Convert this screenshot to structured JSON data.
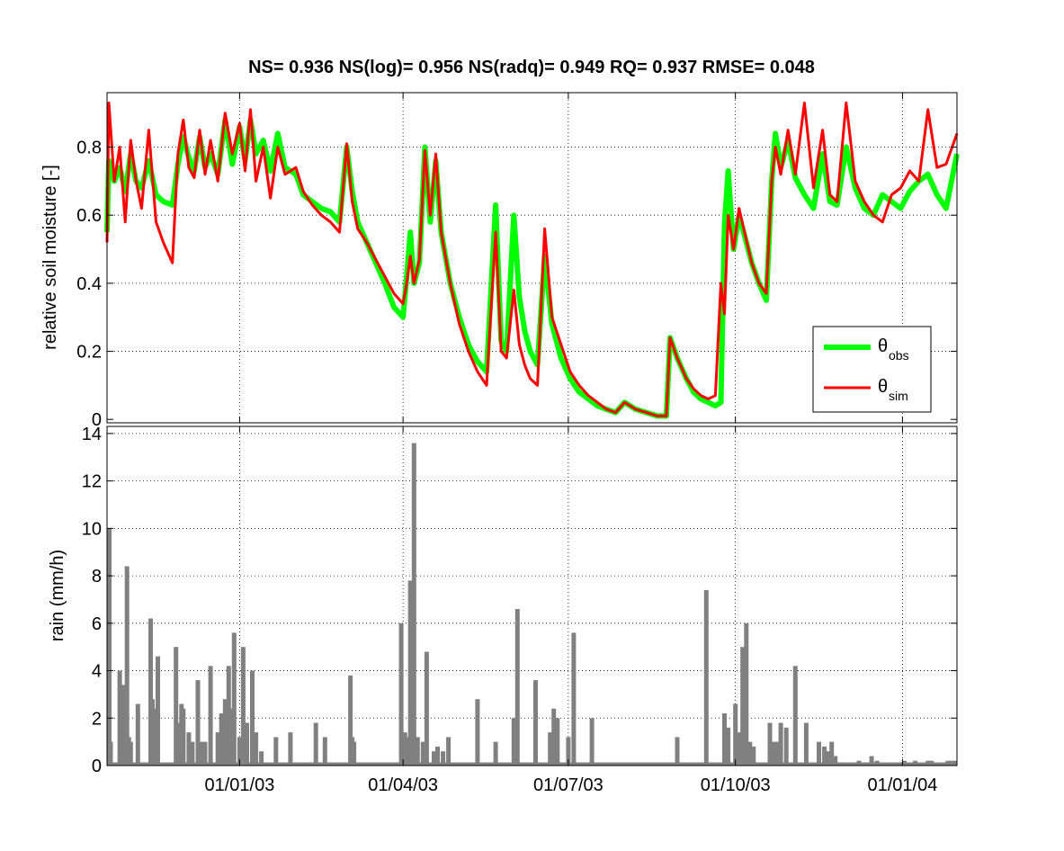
{
  "chart_data": [
    {
      "type": "line",
      "title": "NS= 0.936 NS(log)= 0.956 NS(radq)= 0.949 RQ= 0.937 RMSE= 0.048",
      "ylabel": "relative soil moisture [-]",
      "xlabel": "",
      "xlim": [
        "2002-10-20",
        "2004-01-31"
      ],
      "ylim": [
        -0.01,
        0.96
      ],
      "yticks": [
        0,
        0.2,
        0.4,
        0.6,
        0.8
      ],
      "ytick_labels": [
        "0",
        "0.2",
        "0.4",
        "0.6",
        "0.8"
      ],
      "grid": true,
      "legend": {
        "placement": "bottom-right",
        "entries": [
          {
            "symbol": "θ",
            "sub": "obs",
            "color": "#00ff00"
          },
          {
            "symbol": "θ",
            "sub": "sim",
            "color": "#ff0000"
          }
        ]
      },
      "series": [
        {
          "key": "obs",
          "color": "#00ff00",
          "x": [
            "2002-10-20",
            "2002-10-21",
            "2002-10-24",
            "2002-10-27",
            "2002-10-30",
            "2002-11-02",
            "2002-11-05",
            "2002-11-08",
            "2002-11-12",
            "2002-11-16",
            "2002-11-20",
            "2002-11-25",
            "2002-11-28",
            "2002-12-01",
            "2002-12-04",
            "2002-12-07",
            "2002-12-10",
            "2002-12-13",
            "2002-12-16",
            "2002-12-20",
            "2002-12-24",
            "2002-12-28",
            "2003-01-01",
            "2003-01-04",
            "2003-01-07",
            "2003-01-10",
            "2003-01-14",
            "2003-01-18",
            "2003-01-22",
            "2003-01-26",
            "2003-02-01",
            "2003-02-05",
            "2003-02-10",
            "2003-02-15",
            "2003-02-20",
            "2003-02-25",
            "2003-03-01",
            "2003-03-04",
            "2003-03-07",
            "2003-03-12",
            "2003-03-17",
            "2003-03-22",
            "2003-03-27",
            "2003-04-01",
            "2003-04-03",
            "2003-04-05",
            "2003-04-07",
            "2003-04-10",
            "2003-04-13",
            "2003-04-16",
            "2003-04-19",
            "2003-04-22",
            "2003-04-27",
            "2003-05-02",
            "2003-05-07",
            "2003-05-12",
            "2003-05-17",
            "2003-05-22",
            "2003-05-25",
            "2003-05-28",
            "2003-06-01",
            "2003-06-04",
            "2003-06-07",
            "2003-06-10",
            "2003-06-14",
            "2003-06-18",
            "2003-06-22",
            "2003-06-27",
            "2003-07-02",
            "2003-07-07",
            "2003-07-12",
            "2003-07-17",
            "2003-07-22",
            "2003-07-27",
            "2003-08-01",
            "2003-08-07",
            "2003-08-13",
            "2003-08-19",
            "2003-08-24",
            "2003-08-26",
            "2003-08-30",
            "2003-09-04",
            "2003-09-08",
            "2003-09-12",
            "2003-09-16",
            "2003-09-20",
            "2003-09-23",
            "2003-09-25",
            "2003-09-27",
            "2003-09-30",
            "2003-10-03",
            "2003-10-06",
            "2003-10-10",
            "2003-10-14",
            "2003-10-18",
            "2003-10-21",
            "2003-10-23",
            "2003-10-26",
            "2003-10-30",
            "2003-11-03",
            "2003-11-08",
            "2003-11-13",
            "2003-11-18",
            "2003-11-22",
            "2003-11-26",
            "2003-12-01",
            "2003-12-06",
            "2003-12-11",
            "2003-12-16",
            "2003-12-21",
            "2003-12-26",
            "2003-12-31",
            "2004-01-05",
            "2004-01-10",
            "2004-01-15",
            "2004-01-20",
            "2004-01-25",
            "2004-01-31"
          ],
          "y": [
            0.55,
            0.76,
            0.7,
            0.74,
            0.67,
            0.78,
            0.7,
            0.68,
            0.76,
            0.66,
            0.64,
            0.63,
            0.75,
            0.83,
            0.77,
            0.73,
            0.83,
            0.74,
            0.78,
            0.72,
            0.88,
            0.75,
            0.86,
            0.76,
            0.88,
            0.78,
            0.82,
            0.73,
            0.84,
            0.74,
            0.72,
            0.66,
            0.64,
            0.62,
            0.61,
            0.58,
            0.8,
            0.67,
            0.58,
            0.52,
            0.46,
            0.4,
            0.33,
            0.3,
            0.42,
            0.55,
            0.4,
            0.46,
            0.8,
            0.58,
            0.76,
            0.55,
            0.4,
            0.3,
            0.22,
            0.17,
            0.14,
            0.63,
            0.23,
            0.2,
            0.6,
            0.36,
            0.26,
            0.2,
            0.16,
            0.48,
            0.28,
            0.18,
            0.12,
            0.08,
            0.06,
            0.04,
            0.03,
            0.02,
            0.05,
            0.03,
            0.02,
            0.01,
            0.01,
            0.24,
            0.18,
            0.12,
            0.08,
            0.06,
            0.05,
            0.04,
            0.05,
            0.57,
            0.73,
            0.5,
            0.6,
            0.54,
            0.46,
            0.4,
            0.35,
            0.7,
            0.84,
            0.74,
            0.82,
            0.71,
            0.66,
            0.62,
            0.78,
            0.64,
            0.63,
            0.8,
            0.68,
            0.62,
            0.6,
            0.66,
            0.64,
            0.62,
            0.67,
            0.7,
            0.72,
            0.66,
            0.62,
            0.78
          ]
        },
        {
          "key": "sim",
          "color": "#ff0000",
          "x": [
            "2002-10-20",
            "2002-10-21",
            "2002-10-24",
            "2002-10-27",
            "2002-10-30",
            "2002-11-02",
            "2002-11-05",
            "2002-11-08",
            "2002-11-12",
            "2002-11-16",
            "2002-11-20",
            "2002-11-25",
            "2002-11-28",
            "2002-12-01",
            "2002-12-04",
            "2002-12-07",
            "2002-12-10",
            "2002-12-13",
            "2002-12-16",
            "2002-12-20",
            "2002-12-24",
            "2002-12-28",
            "2003-01-01",
            "2003-01-04",
            "2003-01-07",
            "2003-01-10",
            "2003-01-14",
            "2003-01-18",
            "2003-01-22",
            "2003-01-26",
            "2003-02-01",
            "2003-02-05",
            "2003-02-10",
            "2003-02-15",
            "2003-02-20",
            "2003-02-25",
            "2003-03-01",
            "2003-03-04",
            "2003-03-07",
            "2003-03-12",
            "2003-03-17",
            "2003-03-22",
            "2003-03-27",
            "2003-04-01",
            "2003-04-03",
            "2003-04-05",
            "2003-04-07",
            "2003-04-10",
            "2003-04-13",
            "2003-04-16",
            "2003-04-19",
            "2003-04-22",
            "2003-04-27",
            "2003-05-02",
            "2003-05-07",
            "2003-05-12",
            "2003-05-17",
            "2003-05-22",
            "2003-05-25",
            "2003-05-28",
            "2003-06-01",
            "2003-06-04",
            "2003-06-07",
            "2003-06-10",
            "2003-06-14",
            "2003-06-18",
            "2003-06-22",
            "2003-06-27",
            "2003-07-02",
            "2003-07-07",
            "2003-07-12",
            "2003-07-17",
            "2003-07-22",
            "2003-07-27",
            "2003-08-01",
            "2003-08-07",
            "2003-08-13",
            "2003-08-19",
            "2003-08-24",
            "2003-08-26",
            "2003-08-30",
            "2003-09-04",
            "2003-09-08",
            "2003-09-12",
            "2003-09-16",
            "2003-09-20",
            "2003-09-23",
            "2003-09-25",
            "2003-09-27",
            "2003-09-30",
            "2003-10-03",
            "2003-10-06",
            "2003-10-10",
            "2003-10-14",
            "2003-10-18",
            "2003-10-21",
            "2003-10-23",
            "2003-10-26",
            "2003-10-30",
            "2003-11-03",
            "2003-11-08",
            "2003-11-13",
            "2003-11-18",
            "2003-11-22",
            "2003-11-26",
            "2003-12-01",
            "2003-12-06",
            "2003-12-11",
            "2003-12-16",
            "2003-12-21",
            "2003-12-26",
            "2003-12-31",
            "2004-01-05",
            "2004-01-10",
            "2004-01-15",
            "2004-01-20",
            "2004-01-25",
            "2004-01-31"
          ],
          "y": [
            0.52,
            0.93,
            0.7,
            0.8,
            0.58,
            0.82,
            0.7,
            0.62,
            0.85,
            0.58,
            0.52,
            0.46,
            0.78,
            0.88,
            0.74,
            0.71,
            0.85,
            0.72,
            0.82,
            0.7,
            0.9,
            0.78,
            0.87,
            0.73,
            0.91,
            0.7,
            0.8,
            0.65,
            0.8,
            0.72,
            0.74,
            0.67,
            0.63,
            0.6,
            0.58,
            0.55,
            0.81,
            0.64,
            0.56,
            0.52,
            0.47,
            0.42,
            0.37,
            0.34,
            0.4,
            0.48,
            0.4,
            0.47,
            0.79,
            0.6,
            0.78,
            0.55,
            0.4,
            0.28,
            0.2,
            0.14,
            0.1,
            0.55,
            0.2,
            0.18,
            0.38,
            0.22,
            0.16,
            0.12,
            0.1,
            0.56,
            0.3,
            0.22,
            0.14,
            0.1,
            0.07,
            0.05,
            0.03,
            0.02,
            0.05,
            0.03,
            0.02,
            0.01,
            0.01,
            0.24,
            0.18,
            0.12,
            0.09,
            0.07,
            0.06,
            0.07,
            0.4,
            0.31,
            0.6,
            0.5,
            0.62,
            0.55,
            0.46,
            0.4,
            0.37,
            0.7,
            0.8,
            0.72,
            0.85,
            0.72,
            0.93,
            0.68,
            0.85,
            0.66,
            0.64,
            0.93,
            0.7,
            0.64,
            0.6,
            0.58,
            0.66,
            0.68,
            0.73,
            0.7,
            0.91,
            0.74,
            0.75,
            0.84
          ]
        }
      ]
    },
    {
      "type": "bar",
      "ylabel": "rain (mm/h)",
      "xlabel": "",
      "xlim": [
        "2002-10-20",
        "2004-01-31"
      ],
      "ylim": [
        0,
        14.3
      ],
      "yticks": [
        0,
        2,
        4,
        6,
        8,
        10,
        12,
        14
      ],
      "ytick_labels": [
        "0",
        "2",
        "4",
        "6",
        "8",
        "10",
        "12",
        "14"
      ],
      "xticks": [
        "2003-01-01",
        "2003-04-01",
        "2003-07-01",
        "2003-10-01",
        "2004-01-01"
      ],
      "xtick_labels": [
        "01/01/03",
        "01/04/03",
        "01/07/03",
        "01/10/03",
        "01/01/04"
      ],
      "grid": true,
      "bar_color": "#808080",
      "x": [
        "2002-10-20",
        "2002-10-21",
        "2002-10-22",
        "2002-10-27",
        "2002-10-29",
        "2002-10-31",
        "2002-11-01",
        "2002-11-02",
        "2002-11-06",
        "2002-11-13",
        "2002-11-14",
        "2002-11-15",
        "2002-11-17",
        "2002-11-27",
        "2002-11-28",
        "2002-11-30",
        "2002-12-01",
        "2002-12-04",
        "2002-12-06",
        "2002-12-09",
        "2002-12-11",
        "2002-12-13",
        "2002-12-16",
        "2002-12-20",
        "2002-12-22",
        "2002-12-24",
        "2002-12-26",
        "2002-12-27",
        "2002-12-29",
        "2003-01-01",
        "2003-01-03",
        "2003-01-05",
        "2003-01-08",
        "2003-01-10",
        "2003-01-13",
        "2003-01-21",
        "2003-01-29",
        "2003-02-12",
        "2003-02-17",
        "2003-03-03",
        "2003-03-04",
        "2003-03-05",
        "2003-03-31",
        "2003-04-02",
        "2003-04-03",
        "2003-04-05",
        "2003-04-07",
        "2003-04-09",
        "2003-04-12",
        "2003-04-14",
        "2003-04-18",
        "2003-04-20",
        "2003-04-23",
        "2003-04-26",
        "2003-05-12",
        "2003-05-22",
        "2003-06-01",
        "2003-06-03",
        "2003-06-13",
        "2003-06-21",
        "2003-06-23",
        "2003-06-25",
        "2003-07-01",
        "2003-07-04",
        "2003-07-14",
        "2003-08-30",
        "2003-09-15",
        "2003-09-25",
        "2003-09-27",
        "2003-10-01",
        "2003-10-03",
        "2003-10-05",
        "2003-10-07",
        "2003-10-09",
        "2003-10-11",
        "2003-10-20",
        "2003-10-22",
        "2003-10-24",
        "2003-10-26",
        "2003-10-29",
        "2003-11-03",
        "2003-11-09",
        "2003-11-16",
        "2003-11-19",
        "2003-11-21",
        "2003-11-23",
        "2003-11-25",
        "2003-12-08",
        "2003-12-15",
        "2003-12-18",
        "2004-01-02",
        "2004-01-08",
        "2004-01-15",
        "2004-01-17",
        "2004-01-26",
        "2004-01-28",
        "2004-01-30"
      ],
      "values": [
        10.0,
        1.2,
        1.0,
        4.0,
        3.4,
        8.4,
        1.2,
        1.0,
        2.6,
        6.2,
        2.8,
        2.4,
        4.6,
        5.0,
        1.8,
        2.6,
        2.4,
        1.4,
        1.0,
        3.6,
        1.0,
        1.0,
        4.2,
        1.4,
        2.2,
        2.8,
        4.2,
        2.4,
        5.6,
        1.2,
        5.0,
        1.8,
        4.0,
        1.4,
        0.6,
        1.2,
        1.4,
        1.8,
        1.2,
        3.8,
        1.2,
        1.0,
        6.0,
        1.4,
        1.2,
        7.8,
        13.6,
        1.2,
        1.0,
        4.8,
        0.6,
        0.8,
        0.6,
        1.2,
        2.8,
        1.0,
        2.0,
        6.6,
        3.6,
        1.4,
        2.4,
        2.0,
        1.2,
        5.6,
        2.0,
        1.2,
        7.4,
        2.2,
        1.6,
        2.6,
        1.4,
        5.0,
        6.0,
        1.0,
        0.8,
        1.8,
        1.0,
        1.0,
        1.8,
        1.6,
        4.2,
        1.8,
        1.0,
        0.8,
        0.6,
        1.0,
        0.4,
        0.2,
        0.4,
        0.2,
        0.2,
        0.2,
        0.2,
        0.2,
        0.2,
        0.2,
        0.2
      ]
    }
  ]
}
